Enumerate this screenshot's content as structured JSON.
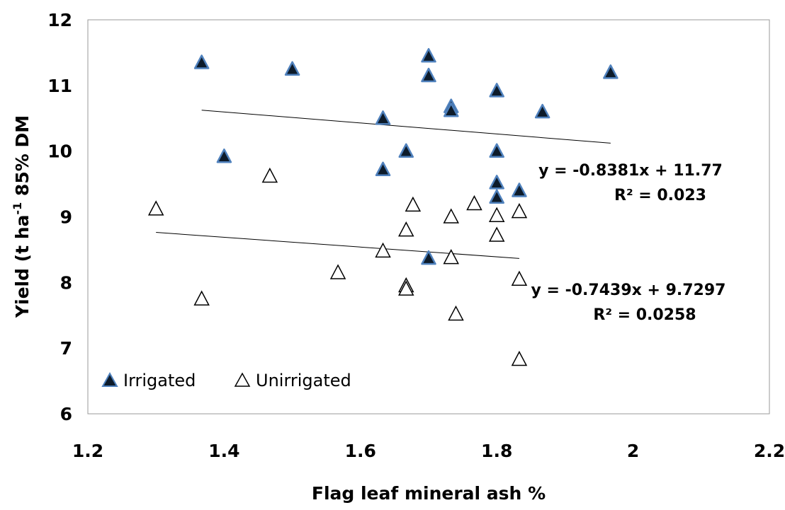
{
  "chart_data": {
    "type": "scatter",
    "title": "",
    "xlabel": "Flag leaf mineral ash %",
    "ylabel": "Yield (t ha",
    "ylabel_sup": "-1",
    "ylabel_suffix": " 85% DM",
    "xlim": [
      1.2,
      2.2
    ],
    "ylim": [
      6,
      12
    ],
    "xticks": [
      1.2,
      1.4,
      1.6,
      1.8,
      2,
      2.2
    ],
    "xtick_labels": [
      "1.2",
      "1.4",
      "1.6",
      "1.8",
      "2",
      "2.2"
    ],
    "yticks": [
      6,
      7,
      8,
      9,
      10,
      11,
      12
    ],
    "ytick_labels": [
      "6",
      "7",
      "8",
      "9",
      "10",
      "11",
      "12"
    ],
    "grid": false,
    "legend_position": "bottom-left",
    "series": [
      {
        "name": "Irrigated",
        "marker": "filled-triangle",
        "color": "#0d1b2a",
        "edge_color": "#4f81bd",
        "points": [
          [
            1.367,
            11.35
          ],
          [
            1.5,
            11.25
          ],
          [
            1.7,
            11.45
          ],
          [
            1.7,
            11.15
          ],
          [
            1.967,
            11.2
          ],
          [
            1.8,
            10.92
          ],
          [
            1.733,
            10.68
          ],
          [
            1.733,
            10.62
          ],
          [
            1.867,
            10.6
          ],
          [
            1.633,
            10.5
          ],
          [
            1.4,
            9.92
          ],
          [
            1.667,
            10.0
          ],
          [
            1.8,
            10.0
          ],
          [
            1.633,
            9.72
          ],
          [
            1.8,
            9.52
          ],
          [
            1.8,
            9.3
          ],
          [
            1.833,
            9.4
          ],
          [
            1.7,
            8.37
          ]
        ],
        "trendline": {
          "slope": -0.8381,
          "intercept": 11.77,
          "x_range": [
            1.367,
            1.967
          ],
          "equation": "y = -0.8381x + 11.77",
          "r2": "R² = 0.023"
        }
      },
      {
        "name": "Unirrigated",
        "marker": "hollow-triangle",
        "color": "#000000",
        "points": [
          [
            1.3,
            9.12
          ],
          [
            1.467,
            9.62
          ],
          [
            1.367,
            7.75
          ],
          [
            1.567,
            8.15
          ],
          [
            1.633,
            8.48
          ],
          [
            1.667,
            8.8
          ],
          [
            1.667,
            7.95
          ],
          [
            1.667,
            7.9
          ],
          [
            1.677,
            9.18
          ],
          [
            1.733,
            9.0
          ],
          [
            1.733,
            8.38
          ],
          [
            1.74,
            7.52
          ],
          [
            1.767,
            9.2
          ],
          [
            1.8,
            9.02
          ],
          [
            1.8,
            8.72
          ],
          [
            1.833,
            9.08
          ],
          [
            1.833,
            8.05
          ],
          [
            1.833,
            6.83
          ]
        ],
        "trendline": {
          "slope": -0.7439,
          "intercept": 9.7297,
          "x_range": [
            1.3,
            1.833
          ],
          "equation": "y = -0.7439x + 9.7297",
          "r2": "R² = 0.0258"
        }
      }
    ]
  }
}
